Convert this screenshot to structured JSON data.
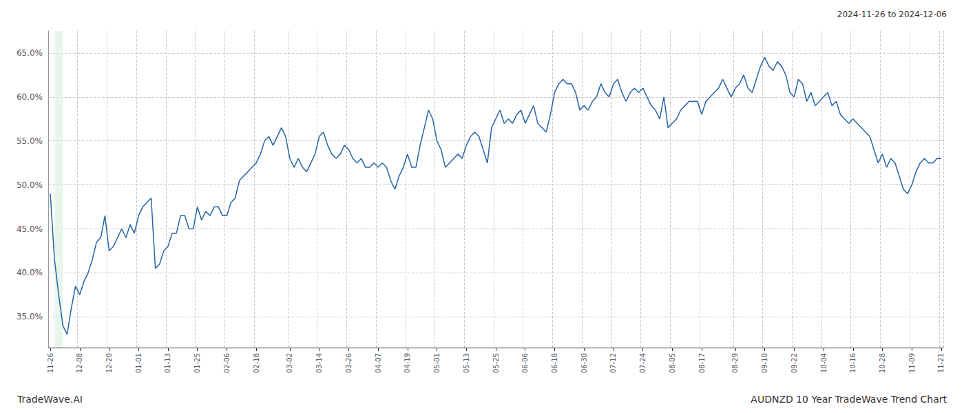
{
  "chart_data": {
    "type": "line",
    "title": "AUDNZD 10 Year TradeWave Trend Chart",
    "subtitle": "2024-11-26 to 2024-12-06",
    "annotations": [
      "TradeWave.AI"
    ],
    "color": "#2563a8",
    "grid": true,
    "highlight": {
      "start": 1,
      "end": 3,
      "color": "#d4edda"
    },
    "ylim": [
      31.5,
      67.5
    ],
    "yticks": [
      {
        "value": 35,
        "label": "35.0%"
      },
      {
        "value": 40,
        "label": "40.0%"
      },
      {
        "value": 45,
        "label": "45.0%"
      },
      {
        "value": 50,
        "label": "50.0%"
      },
      {
        "value": 55,
        "label": "55.0%"
      },
      {
        "value": 60,
        "label": "60.0%"
      },
      {
        "value": 65,
        "label": "65.0%"
      }
    ],
    "categories": [
      "11-26",
      null,
      null,
      null,
      null,
      null,
      null,
      "12-08",
      null,
      null,
      null,
      null,
      null,
      null,
      "12-20",
      null,
      null,
      null,
      null,
      null,
      null,
      "01-01",
      null,
      null,
      null,
      null,
      null,
      null,
      "01-13",
      null,
      null,
      null,
      null,
      null,
      null,
      "01-25",
      null,
      null,
      null,
      null,
      null,
      null,
      "02-06",
      null,
      null,
      null,
      null,
      null,
      null,
      "02-18",
      null,
      null,
      null,
      null,
      null,
      null,
      null,
      "03-02",
      null,
      null,
      null,
      null,
      null,
      null,
      "03-14",
      null,
      null,
      null,
      null,
      null,
      null,
      "03-26",
      null,
      null,
      null,
      null,
      null,
      null,
      "04-07",
      null,
      null,
      null,
      null,
      null,
      null,
      "04-19",
      null,
      null,
      null,
      null,
      null,
      null,
      "05-01",
      null,
      null,
      null,
      null,
      null,
      null,
      "05-13",
      null,
      null,
      null,
      null,
      null,
      null,
      "05-25",
      null,
      null,
      null,
      null,
      null,
      null,
      "06-06",
      null,
      null,
      null,
      null,
      null,
      null,
      "06-18",
      null,
      null,
      null,
      null,
      null,
      null,
      "06-30",
      null,
      null,
      null,
      null,
      null,
      null,
      "07-12",
      null,
      null,
      null,
      null,
      null,
      null,
      "07-24",
      null,
      null,
      null,
      null,
      null,
      null,
      "08-05",
      null,
      null,
      null,
      null,
      null,
      null,
      "08-17",
      null,
      null,
      null,
      null,
      null,
      null,
      null,
      "08-29",
      null,
      null,
      null,
      null,
      null,
      null,
      "09-10",
      null,
      null,
      null,
      null,
      null,
      null,
      "09-22",
      null,
      null,
      null,
      null,
      null,
      null,
      "10-04",
      null,
      null,
      null,
      null,
      null,
      null,
      "10-16",
      null,
      null,
      null,
      null,
      null,
      null,
      "10-28",
      null,
      null,
      null,
      null,
      null,
      null,
      "11-09",
      null,
      null,
      null,
      null,
      null,
      null,
      "11-21"
    ],
    "values": [
      49.0,
      41.5,
      37.5,
      34.0,
      33.0,
      36.0,
      38.5,
      37.5,
      39.0,
      40.0,
      41.5,
      43.5,
      44.0,
      46.5,
      42.5,
      43.0,
      44.0,
      45.0,
      44.0,
      45.5,
      44.5,
      46.5,
      47.5,
      48.0,
      48.5,
      40.5,
      41.0,
      42.5,
      43.0,
      44.5,
      44.5,
      46.5,
      46.5,
      45.0,
      45.0,
      47.5,
      46.0,
      47.0,
      46.5,
      47.5,
      47.5,
      46.5,
      46.5,
      48.0,
      48.5,
      50.5,
      51.0,
      51.5,
      52.0,
      52.5,
      53.5,
      55.0,
      55.5,
      54.5,
      55.5,
      56.5,
      55.5,
      53.0,
      52.0,
      53.0,
      52.0,
      51.5,
      52.5,
      53.5,
      55.5,
      56.0,
      54.5,
      53.5,
      53.0,
      53.5,
      54.5,
      54.0,
      53.0,
      52.5,
      53.0,
      52.0,
      52.0,
      52.5,
      52.0,
      52.5,
      52.0,
      50.5,
      49.5,
      51.0,
      52.0,
      53.5,
      52.0,
      52.0,
      54.5,
      56.5,
      58.5,
      57.5,
      55.0,
      54.0,
      52.0,
      52.5,
      53.0,
      53.5,
      53.0,
      54.5,
      55.5,
      56.0,
      55.5,
      54.0,
      52.5,
      56.5,
      57.5,
      58.5,
      57.0,
      57.5,
      57.0,
      58.0,
      58.5,
      57.0,
      58.0,
      59.0,
      57.0,
      56.5,
      56.0,
      58.0,
      60.5,
      61.5,
      62.0,
      61.5,
      61.5,
      60.5,
      58.5,
      59.0,
      58.5,
      59.5,
      60.0,
      61.5,
      60.5,
      60.0,
      61.5,
      62.0,
      60.5,
      59.5,
      60.5,
      61.0,
      60.5,
      61.0,
      60.0,
      59.0,
      58.5,
      57.5,
      60.0,
      56.5,
      57.0,
      57.5,
      58.5,
      59.0,
      59.5,
      59.5,
      59.5,
      58.0,
      59.5,
      60.0,
      60.5,
      61.0,
      62.0,
      61.0,
      60.0,
      61.0,
      61.5,
      62.5,
      61.0,
      60.5,
      62.0,
      63.5,
      64.5,
      63.5,
      63.0,
      64.0,
      63.5,
      62.5,
      60.5,
      60.0,
      62.0,
      61.5,
      59.5,
      60.5,
      59.0,
      59.5,
      60.0,
      60.5,
      59.0,
      59.5,
      58.0,
      57.5,
      57.0,
      57.5,
      57.0,
      56.5,
      56.0,
      55.5,
      54.0,
      52.5,
      53.5,
      52.0,
      53.0,
      52.5,
      51.0,
      49.5,
      49.0,
      50.0,
      51.5,
      52.5,
      53.0,
      52.5,
      52.5,
      53.0,
      53.0
    ]
  }
}
